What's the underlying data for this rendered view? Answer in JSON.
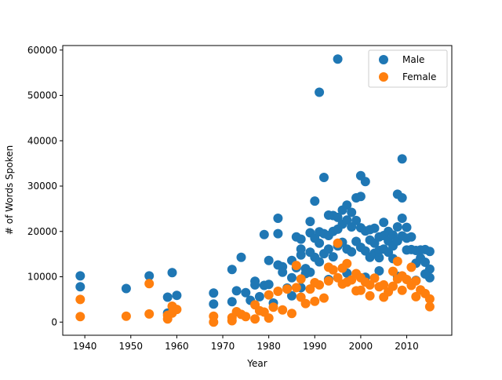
{
  "chart_data": {
    "type": "scatter",
    "title": "",
    "xlabel": "Year",
    "ylabel": "# of Words Spoken",
    "xlim": [
      1935.2,
      1019.8
    ],
    "ylim": [
      -2900,
      61000
    ],
    "xticks": [
      1940,
      1950,
      1960,
      1970,
      1980,
      1990,
      2000,
      2010
    ],
    "yticks": [
      0,
      10000,
      20000,
      30000,
      40000,
      50000,
      60000
    ],
    "legend_position": "top-right",
    "grid": false,
    "series": [
      {
        "name": "Male",
        "color": "#1f77b4",
        "points": [
          [
            1939,
            10200
          ],
          [
            1939,
            7800
          ],
          [
            1949,
            7400
          ],
          [
            1954,
            10200
          ],
          [
            1958,
            5500
          ],
          [
            1959,
            10900
          ],
          [
            1960,
            5900
          ],
          [
            1958,
            2000
          ],
          [
            1968,
            6400
          ],
          [
            1968,
            4000
          ],
          [
            1972,
            11600
          ],
          [
            1972,
            4500
          ],
          [
            1973,
            6900
          ],
          [
            1974,
            14300
          ],
          [
            1975,
            6500
          ],
          [
            1976,
            4800
          ],
          [
            1977,
            9000
          ],
          [
            1977,
            8200
          ],
          [
            1978,
            5600
          ],
          [
            1979,
            19300
          ],
          [
            1979,
            8100
          ],
          [
            1980,
            13600
          ],
          [
            1980,
            8300
          ],
          [
            1981,
            4200
          ],
          [
            1982,
            22900
          ],
          [
            1982,
            19500
          ],
          [
            1982,
            12600
          ],
          [
            1983,
            12200
          ],
          [
            1983,
            11000
          ],
          [
            1984,
            7500
          ],
          [
            1985,
            13600
          ],
          [
            1985,
            9800
          ],
          [
            1986,
            18800
          ],
          [
            1986,
            12000
          ],
          [
            1987,
            18300
          ],
          [
            1987,
            16100
          ],
          [
            1987,
            14800
          ],
          [
            1988,
            11800
          ],
          [
            1988,
            10700
          ],
          [
            1989,
            22200
          ],
          [
            1989,
            19700
          ],
          [
            1989,
            15400
          ],
          [
            1990,
            26700
          ],
          [
            1990,
            18500
          ],
          [
            1990,
            14300
          ],
          [
            1991,
            50700
          ],
          [
            1991,
            19900
          ],
          [
            1991,
            17400
          ],
          [
            1991,
            13300
          ],
          [
            1992,
            31900
          ],
          [
            1992,
            19500
          ],
          [
            1992,
            15100
          ],
          [
            1993,
            23600
          ],
          [
            1993,
            19100
          ],
          [
            1993,
            16100
          ],
          [
            1994,
            23500
          ],
          [
            1994,
            20000
          ],
          [
            1994,
            14400
          ],
          [
            1995,
            58000
          ],
          [
            1995,
            23100
          ],
          [
            1995,
            20500
          ],
          [
            1995,
            16800
          ],
          [
            1996,
            24700
          ],
          [
            1996,
            21600
          ],
          [
            1996,
            17600
          ],
          [
            1997,
            25800
          ],
          [
            1997,
            22500
          ],
          [
            1997,
            16100
          ],
          [
            1998,
            24200
          ],
          [
            1998,
            21000
          ],
          [
            1998,
            15500
          ],
          [
            1999,
            27400
          ],
          [
            1999,
            22400
          ],
          [
            1999,
            17800
          ],
          [
            2000,
            32300
          ],
          [
            2000,
            27700
          ],
          [
            2000,
            20800
          ],
          [
            2000,
            16500
          ],
          [
            2001,
            31000
          ],
          [
            2001,
            20100
          ],
          [
            2001,
            15700
          ],
          [
            2002,
            20400
          ],
          [
            2002,
            18100
          ],
          [
            2002,
            14300
          ],
          [
            2003,
            20700
          ],
          [
            2003,
            17400
          ],
          [
            2003,
            15200
          ],
          [
            2004,
            18800
          ],
          [
            2004,
            15800
          ],
          [
            2004,
            14200
          ],
          [
            2005,
            22000
          ],
          [
            2005,
            19100
          ],
          [
            2005,
            16100
          ],
          [
            2006,
            20000
          ],
          [
            2006,
            17900
          ],
          [
            2006,
            15400
          ],
          [
            2007,
            19200
          ],
          [
            2007,
            16800
          ],
          [
            2007,
            14000
          ],
          [
            2008,
            28200
          ],
          [
            2008,
            21000
          ],
          [
            2008,
            17900
          ],
          [
            2009,
            36000
          ],
          [
            2009,
            27400
          ],
          [
            2009,
            22900
          ],
          [
            2009,
            19000
          ],
          [
            2010,
            20900
          ],
          [
            2010,
            18500
          ],
          [
            2010,
            15900
          ],
          [
            2011,
            18800
          ],
          [
            2011,
            16000
          ],
          [
            2012,
            15800
          ],
          [
            2012,
            13000
          ],
          [
            2013,
            15900
          ],
          [
            2013,
            14100
          ],
          [
            2014,
            16000
          ],
          [
            2014,
            13200
          ],
          [
            2015,
            15600
          ],
          [
            2015,
            11700
          ],
          [
            2015,
            9800
          ],
          [
            1985,
            5800
          ],
          [
            1987,
            7600
          ],
          [
            1989,
            11000
          ],
          [
            1993,
            9400
          ],
          [
            1997,
            10800
          ],
          [
            2001,
            9900
          ],
          [
            2004,
            11300
          ],
          [
            2008,
            10100
          ],
          [
            2012,
            9200
          ],
          [
            2014,
            10600
          ]
        ]
      },
      {
        "name": "Female",
        "color": "#ff7f0e",
        "points": [
          [
            1939,
            5000
          ],
          [
            1939,
            1200
          ],
          [
            1949,
            1300
          ],
          [
            1954,
            8500
          ],
          [
            1954,
            1800
          ],
          [
            1958,
            1500
          ],
          [
            1958,
            700
          ],
          [
            1959,
            3500
          ],
          [
            1959,
            2000
          ],
          [
            1960,
            2800
          ],
          [
            1968,
            1300
          ],
          [
            1968,
            0
          ],
          [
            1972,
            1000
          ],
          [
            1972,
            300
          ],
          [
            1973,
            2300
          ],
          [
            1974,
            1700
          ],
          [
            1975,
            1200
          ],
          [
            1977,
            3800
          ],
          [
            1977,
            700
          ],
          [
            1978,
            2500
          ],
          [
            1979,
            2200
          ],
          [
            1980,
            6000
          ],
          [
            1980,
            900
          ],
          [
            1981,
            3300
          ],
          [
            1982,
            6800
          ],
          [
            1983,
            2700
          ],
          [
            1984,
            7300
          ],
          [
            1985,
            1900
          ],
          [
            1986,
            12500
          ],
          [
            1986,
            7600
          ],
          [
            1987,
            9500
          ],
          [
            1987,
            5500
          ],
          [
            1988,
            4100
          ],
          [
            1989,
            7300
          ],
          [
            1990,
            8700
          ],
          [
            1990,
            4600
          ],
          [
            1991,
            8200
          ],
          [
            1992,
            5300
          ],
          [
            1993,
            12100
          ],
          [
            1993,
            9100
          ],
          [
            1994,
            11500
          ],
          [
            1995,
            17400
          ],
          [
            1995,
            9800
          ],
          [
            1996,
            11900
          ],
          [
            1996,
            8400
          ],
          [
            1997,
            12900
          ],
          [
            1997,
            8800
          ],
          [
            1998,
            9300
          ],
          [
            1999,
            10700
          ],
          [
            1999,
            6900
          ],
          [
            2000,
            9800
          ],
          [
            2000,
            7000
          ],
          [
            2001,
            8800
          ],
          [
            2002,
            8200
          ],
          [
            2002,
            5800
          ],
          [
            2003,
            9700
          ],
          [
            2004,
            7800
          ],
          [
            2005,
            8200
          ],
          [
            2005,
            5500
          ],
          [
            2006,
            6700
          ],
          [
            2007,
            11200
          ],
          [
            2007,
            7900
          ],
          [
            2008,
            13400
          ],
          [
            2008,
            9500
          ],
          [
            2009,
            10200
          ],
          [
            2009,
            7000
          ],
          [
            2010,
            9400
          ],
          [
            2011,
            12100
          ],
          [
            2011,
            8100
          ],
          [
            2012,
            9100
          ],
          [
            2012,
            5600
          ],
          [
            2013,
            7100
          ],
          [
            2014,
            6300
          ],
          [
            2015,
            5100
          ],
          [
            2015,
            3400
          ]
        ]
      }
    ]
  }
}
